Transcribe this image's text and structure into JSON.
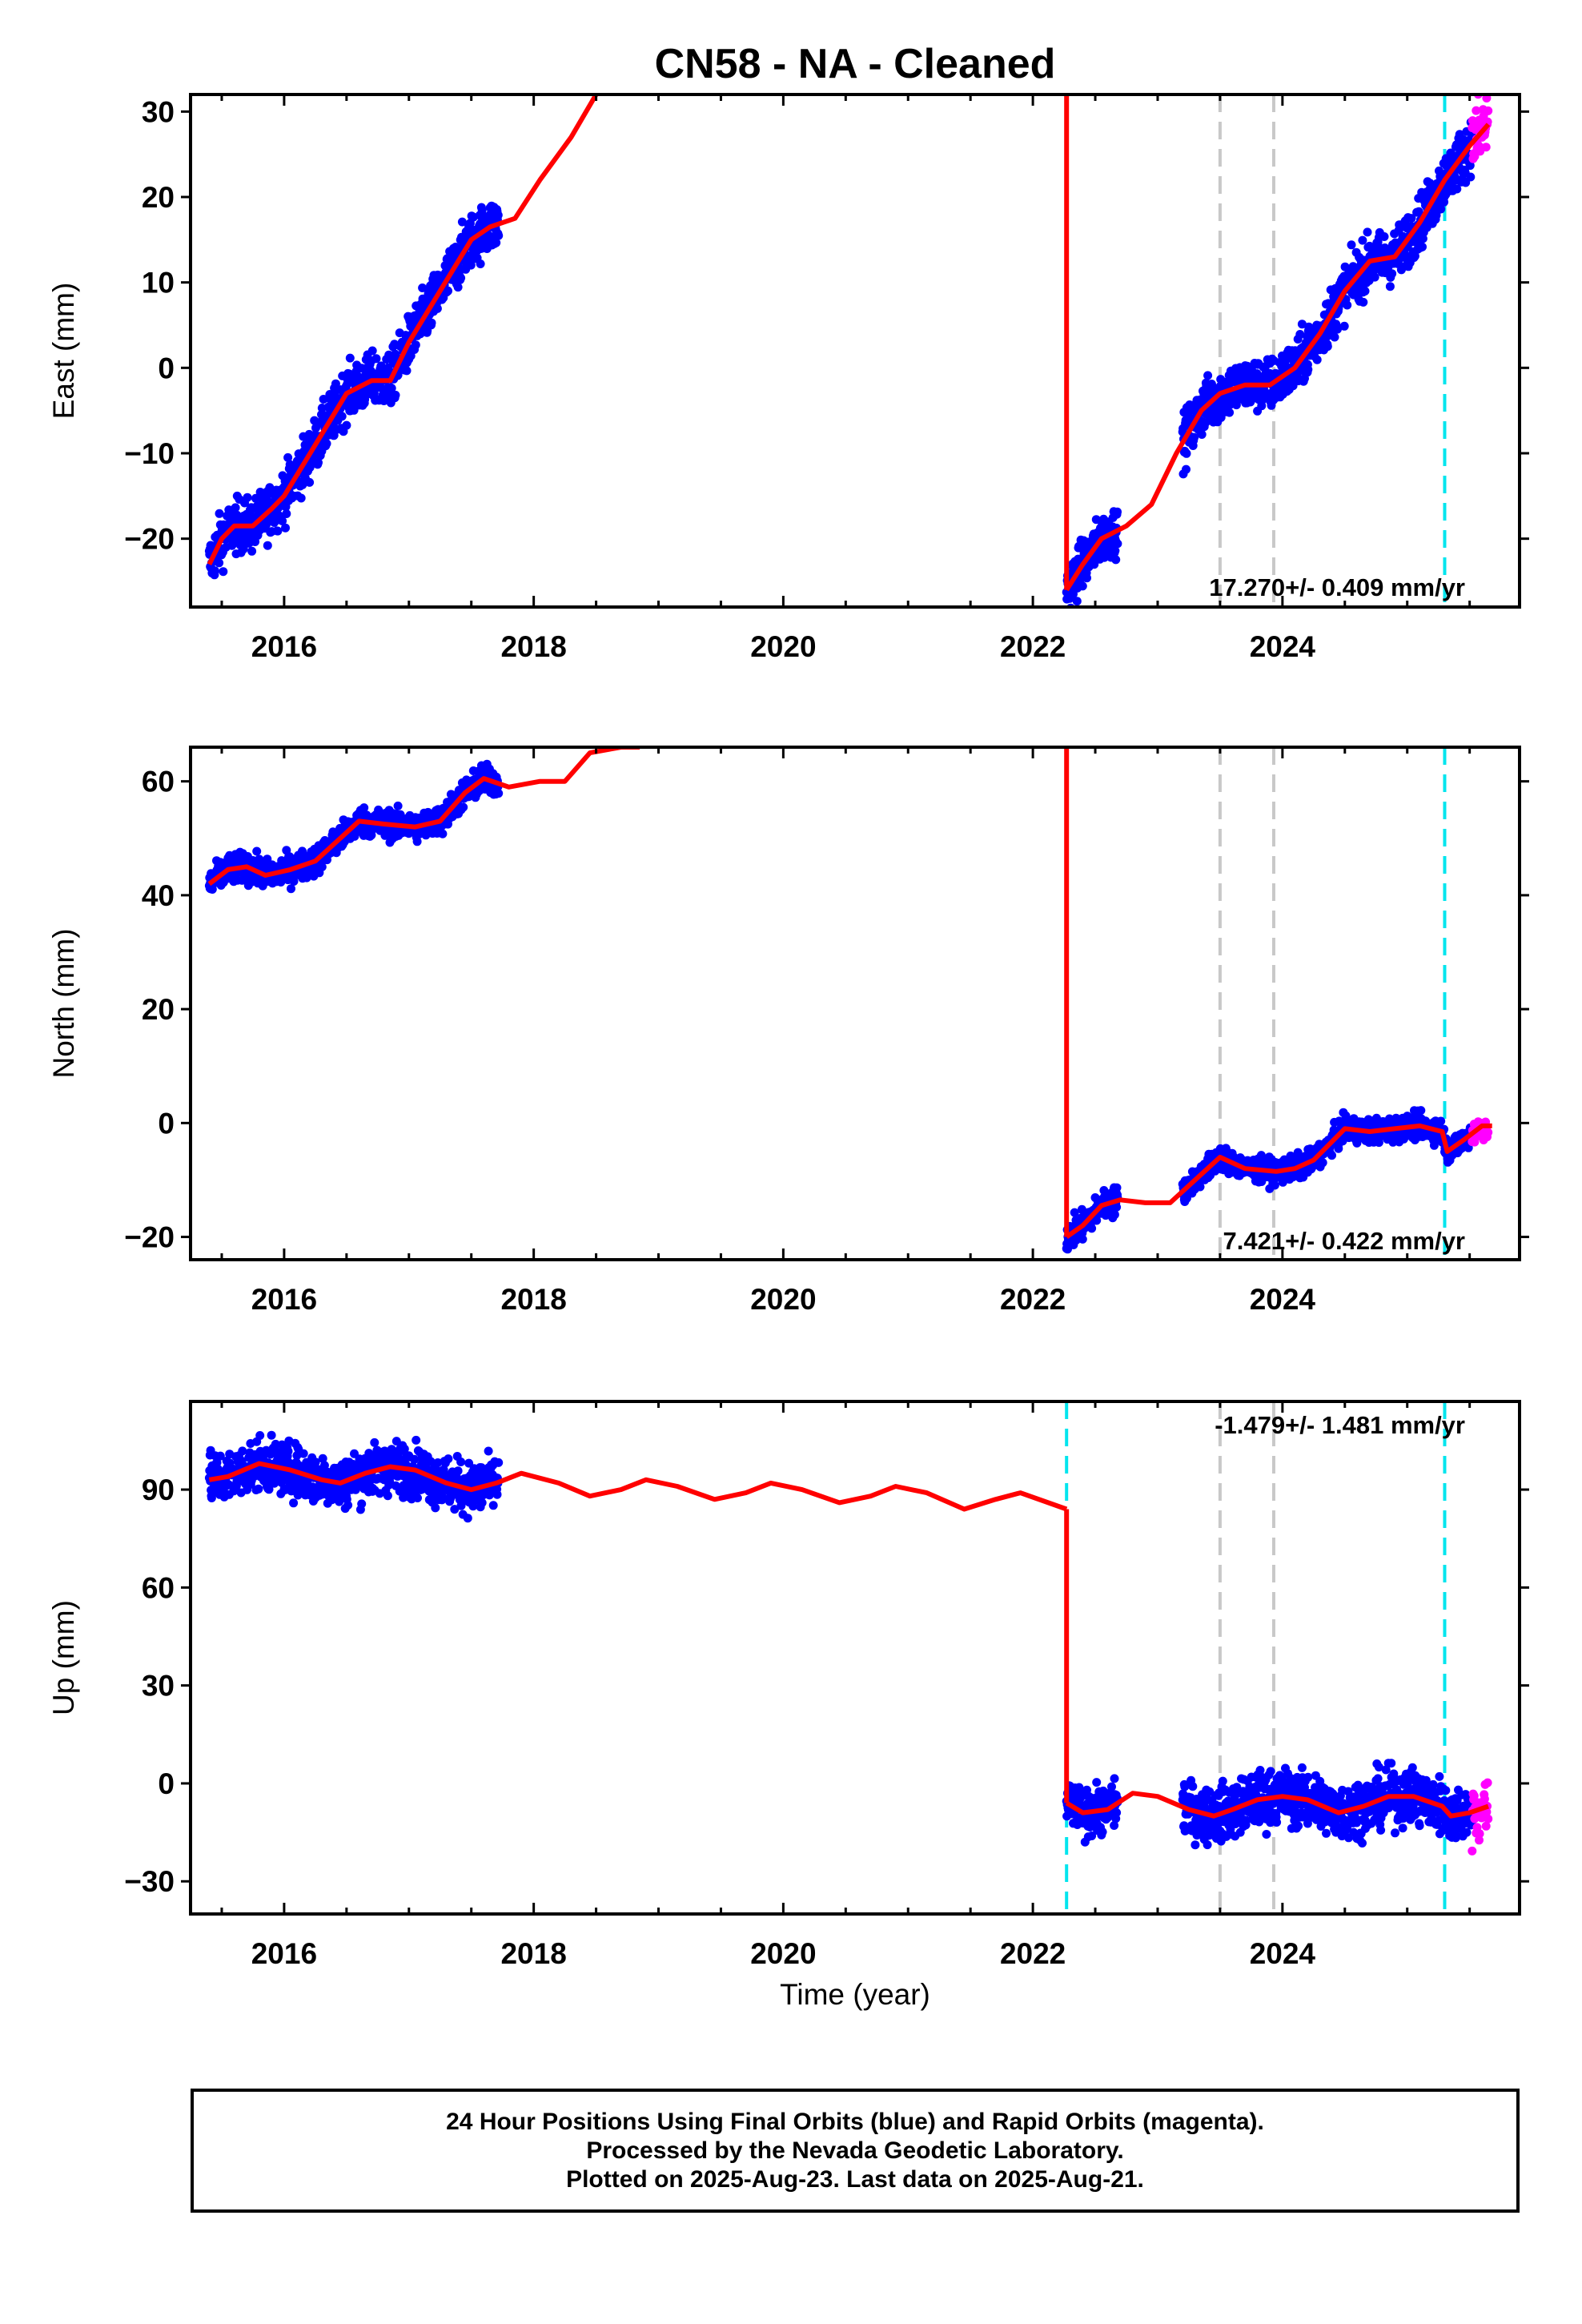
{
  "title": "CN58  - NA - Cleaned",
  "xlabel": "Time (year)",
  "footer": {
    "line1": "24 Hour Positions Using Final Orbits (blue) and Rapid Orbits (magenta).",
    "line2": "Processed by the Nevada Geodetic Laboratory.",
    "line3": "Plotted on 2025-Aug-23. Last data on 2025-Aug-21."
  },
  "colors": {
    "final": "#0000ff",
    "rapid": "#ff00ff",
    "model": "#ff0000",
    "equipment_change": "#c8c8c8",
    "earthquake": "#00e5ee"
  },
  "chart_data": [
    {
      "type": "scatter",
      "name": "east",
      "ylabel": "East (mm)",
      "rate": "17.270+/- 0.409 mm/yr",
      "xlim": [
        2015.25,
        2025.9
      ],
      "ylim": [
        -28,
        32
      ],
      "xticks": [
        2016,
        2018,
        2020,
        2022,
        2024
      ],
      "yticks": [
        -20,
        -10,
        0,
        10,
        20,
        30
      ],
      "vlines_gray": [
        2023.5,
        2023.93
      ],
      "vlines_cyan": [
        2025.3
      ],
      "segments": [
        {
          "x": [
            2015.4,
            2015.5,
            2015.6,
            2015.75,
            2015.9,
            2016.0,
            2016.25,
            2016.5,
            2016.7,
            2016.85,
            2017.0,
            2017.25,
            2017.5,
            2017.65,
            2017.85,
            2018.05,
            2018.3,
            2018.5
          ],
          "y": [
            -23,
            -20,
            -18.5,
            -18.5,
            -16.5,
            -15,
            -9,
            -3,
            -1.5,
            -1.5,
            3,
            9,
            15,
            16.5,
            17.5,
            22,
            27,
            32
          ]
        },
        {
          "x": [
            2022.27,
            2022.4,
            2022.55,
            2022.75,
            2022.95,
            2023.15,
            2023.35,
            2023.5,
            2023.7,
            2023.9,
            2024.1,
            2024.3,
            2024.5,
            2024.7,
            2024.9,
            2025.1,
            2025.3,
            2025.5,
            2025.65
          ],
          "y": [
            -26,
            -23,
            -20,
            -18.5,
            -16,
            -10,
            -5,
            -3,
            -2,
            -2,
            0,
            4,
            9,
            12.5,
            13,
            17,
            22,
            26,
            28.5
          ]
        }
      ],
      "jumps": [
        {
          "x": 2022.27,
          "y_from": 32,
          "y_to": -26
        }
      ],
      "final_clusters": [
        {
          "x0": 2015.4,
          "x1": 2017.72,
          "spread": 2.2
        },
        {
          "x0": 2022.27,
          "x1": 2022.68,
          "spread": 2.0
        },
        {
          "x0": 2023.2,
          "x1": 2025.52,
          "spread": 2.2
        }
      ],
      "rapid_cluster": {
        "x0": 2025.52,
        "x1": 2025.65,
        "spread": 3.5
      }
    },
    {
      "type": "scatter",
      "name": "north",
      "ylabel": "North (mm)",
      "rate": "7.421+/- 0.422 mm/yr",
      "xlim": [
        2015.25,
        2025.9
      ],
      "ylim": [
        -24,
        66
      ],
      "xticks": [
        2016,
        2018,
        2020,
        2022,
        2024
      ],
      "yticks": [
        -20,
        0,
        20,
        40,
        60
      ],
      "vlines_gray": [
        2023.5,
        2023.93
      ],
      "vlines_cyan": [
        2025.3
      ],
      "segments": [
        {
          "x": [
            2015.4,
            2015.55,
            2015.7,
            2015.85,
            2016.05,
            2016.25,
            2016.45,
            2016.6,
            2016.8,
            2017.05,
            2017.25,
            2017.45,
            2017.6,
            2017.8,
            2018.05,
            2018.25,
            2018.45,
            2018.7,
            2018.85
          ],
          "y": [
            42,
            44.5,
            45,
            43.5,
            44.5,
            46,
            50,
            53,
            52.5,
            52,
            53,
            58,
            60.5,
            59,
            60,
            60,
            65,
            66,
            66
          ]
        },
        {
          "x": [
            2022.27,
            2022.4,
            2022.55,
            2022.7,
            2022.9,
            2023.1,
            2023.3,
            2023.5,
            2023.7,
            2023.95,
            2024.1,
            2024.25,
            2024.5,
            2024.7,
            2024.9,
            2025.1,
            2025.28,
            2025.32,
            2025.45,
            2025.6,
            2025.68
          ],
          "y": [
            -20,
            -18,
            -14.5,
            -13.5,
            -14,
            -14,
            -10,
            -6,
            -8,
            -8.5,
            -8,
            -6.5,
            -1,
            -1.5,
            -1,
            -0.5,
            -1.5,
            -5,
            -3,
            -0.5,
            -0.5
          ]
        }
      ],
      "jumps": [
        {
          "x": 2022.27,
          "y_from": 66,
          "y_to": -20
        }
      ],
      "final_clusters": [
        {
          "x0": 2015.4,
          "x1": 2017.72,
          "spread": 1.8
        },
        {
          "x0": 2022.27,
          "x1": 2022.68,
          "spread": 1.8
        },
        {
          "x0": 2023.2,
          "x1": 2025.52,
          "spread": 1.5
        }
      ],
      "rapid_cluster": {
        "x0": 2025.52,
        "x1": 2025.65,
        "spread": 1.8
      }
    },
    {
      "type": "scatter",
      "name": "up",
      "ylabel": "Up (mm)",
      "rate": "-1.479+/- 1.481 mm/yr",
      "xlim": [
        2015.25,
        2025.9
      ],
      "ylim": [
        -40,
        117
      ],
      "xticks": [
        2016,
        2018,
        2020,
        2022,
        2024
      ],
      "yticks": [
        -30,
        0,
        30,
        60,
        90
      ],
      "vlines_gray": [
        2023.5,
        2023.93
      ],
      "vlines_cyan": [
        2022.27,
        2025.3
      ],
      "segments": [
        {
          "x": [
            2015.4,
            2015.55,
            2015.8,
            2016.05,
            2016.3,
            2016.45,
            2016.65,
            2016.85,
            2017.05,
            2017.3,
            2017.5,
            2017.7,
            2017.9,
            2018.2,
            2018.45,
            2018.7,
            2018.9,
            2019.15,
            2019.45,
            2019.7,
            2019.9,
            2020.15,
            2020.45,
            2020.7,
            2020.9,
            2021.15,
            2021.45,
            2021.7,
            2021.9,
            2022.27
          ],
          "y": [
            93,
            94,
            98,
            96,
            93,
            92,
            95,
            97,
            96,
            92,
            90,
            92,
            95,
            92,
            88,
            90,
            93,
            91,
            87,
            89,
            92,
            90,
            86,
            88,
            91,
            89,
            84,
            87,
            89,
            84
          ]
        },
        {
          "x": [
            2022.27,
            2022.4,
            2022.6,
            2022.8,
            2023.0,
            2023.25,
            2023.45,
            2023.6,
            2023.8,
            2024.0,
            2024.2,
            2024.45,
            2024.65,
            2024.85,
            2025.05,
            2025.28,
            2025.35,
            2025.5,
            2025.65
          ],
          "y": [
            -6,
            -9,
            -8,
            -3,
            -4,
            -8,
            -10,
            -8,
            -5,
            -4,
            -5,
            -9,
            -7,
            -4,
            -4,
            -7,
            -10,
            -9,
            -7
          ]
        }
      ],
      "jumps": [
        {
          "x": 2022.27,
          "y_from": 84,
          "y_to": -6
        }
      ],
      "final_clusters": [
        {
          "x0": 2015.4,
          "x1": 2017.72,
          "spread": 5.5
        },
        {
          "x0": 2022.27,
          "x1": 2022.68,
          "spread": 5
        },
        {
          "x0": 2023.2,
          "x1": 2025.52,
          "spread": 6
        }
      ],
      "rapid_cluster": {
        "x0": 2025.52,
        "x1": 2025.65,
        "spread": 7
      }
    }
  ]
}
